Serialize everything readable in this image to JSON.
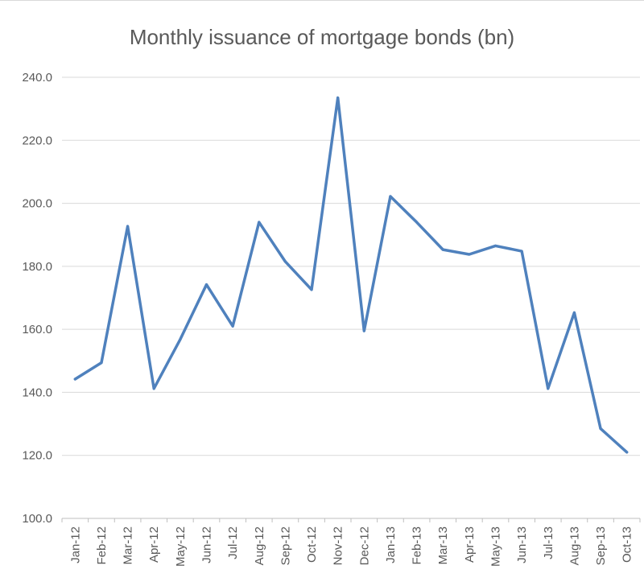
{
  "chart_data": {
    "type": "line",
    "title": "Monthly issuance of mortgage bonds (bn)",
    "xlabel": "",
    "ylabel": "",
    "ylim": [
      100,
      240
    ],
    "yticks": [
      "100.0",
      "120.0",
      "140.0",
      "160.0",
      "180.0",
      "200.0",
      "220.0",
      "240.0"
    ],
    "grid": true,
    "legend": "none",
    "categories": [
      "Jan-12",
      "Feb-12",
      "Mar-12",
      "Apr-12",
      "May-12",
      "Jun-12",
      "Jul-12",
      "Aug-12",
      "Sep-12",
      "Oct-12",
      "Nov-12",
      "Dec-12",
      "Jan-13",
      "Feb-13",
      "Mar-13",
      "Apr-13",
      "May-13",
      "Jun-13",
      "Jul-13",
      "Aug-13",
      "Sep-13",
      "Oct-13"
    ],
    "series": [
      {
        "values": [
          144.2,
          149.4,
          192.7,
          141.2,
          156.8,
          174.2,
          161.0,
          194.0,
          181.5,
          172.6,
          233.5,
          159.5,
          202.2,
          194.0,
          185.3,
          183.8,
          186.5,
          184.8,
          141.2,
          165.3,
          128.5,
          121.0
        ],
        "color": "#4f81bd"
      }
    ]
  }
}
